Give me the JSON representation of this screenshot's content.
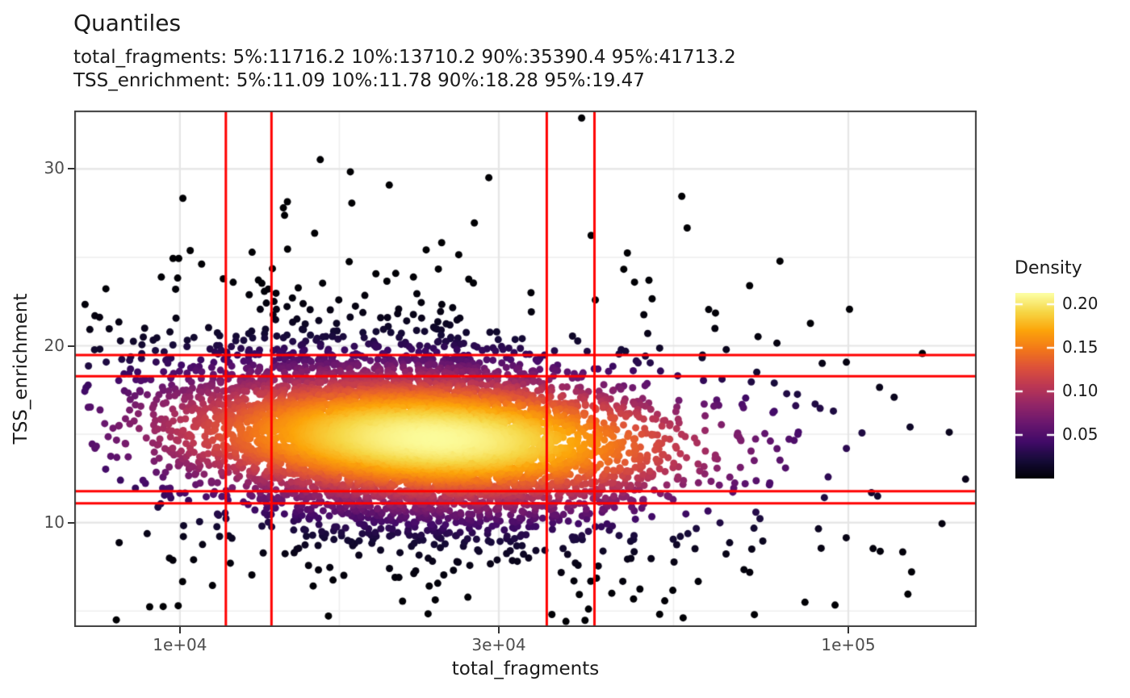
{
  "chart_data": {
    "type": "scatter",
    "subtype": "density-colored-scatter",
    "title": "Quantiles",
    "subtitle_lines": [
      "total_fragments: 5%:11716.2 10%:13710.2 90%:35390.4 95%:41713.2",
      "TSS_enrichment: 5%:11.09 10%:11.78 90%:18.28 95%:19.47"
    ],
    "xlabel": "total_fragments",
    "ylabel": "TSS_enrichment",
    "x_axis": {
      "scale": "log10",
      "range_log10": [
        3.842,
        5.192
      ],
      "ticks": [
        {
          "value": 10000,
          "label": "1e+04"
        },
        {
          "value": 30000,
          "label": "3e+04"
        },
        {
          "value": 100000,
          "label": "1e+05"
        }
      ],
      "minor_ticks": [
        17320,
        54770
      ]
    },
    "y_axis": {
      "scale": "linear",
      "range": [
        4.1,
        33.3
      ],
      "ticks": [
        {
          "value": 10,
          "label": "10"
        },
        {
          "value": 20,
          "label": "20"
        },
        {
          "value": 30,
          "label": "30"
        }
      ],
      "minor_ticks": [
        5,
        15,
        25
      ]
    },
    "quantiles": {
      "total_fragments": {
        "5%": 11716.2,
        "10%": 13710.2,
        "90%": 35390.4,
        "95%": 41713.2
      },
      "TSS_enrichment": {
        "5%": 11.09,
        "10%": 11.78,
        "90%": 18.28,
        "95%": 19.47
      }
    },
    "quantile_lines": {
      "color": "#FF0000",
      "width": 3,
      "x_values": [
        11716.2,
        13710.2,
        35390.4,
        41713.2
      ],
      "y_values": [
        11.09,
        11.78,
        18.28,
        19.47
      ]
    },
    "legend": {
      "title": "Density",
      "position": "right",
      "bar_range": [
        0.0,
        0.213
      ],
      "tick_values": [
        0.2,
        0.15,
        0.1,
        0.05
      ],
      "tick_labels": [
        "0.20",
        "0.15",
        "0.10",
        "0.05"
      ]
    },
    "colormap": {
      "name": "inferno",
      "stops": [
        "#000004",
        "#160b39",
        "#420a68",
        "#6a176e",
        "#932667",
        "#bc3754",
        "#dd513a",
        "#f37819",
        "#fca50a",
        "#f6d746",
        "#fcffa4"
      ]
    },
    "grid": {
      "background": "#ffffff",
      "major_color": "#e5e5e5",
      "minor_color": "#efefef",
      "border_color": "#3c3c3c"
    },
    "text_colors": {
      "axis_text": "#4d4d4d",
      "title_text": "#1a1a1a"
    },
    "point_cloud": {
      "n": 7000,
      "seed": 42,
      "point_radius": 4.5,
      "bounds": {
        "log10_x": [
          3.856,
          5.185
        ],
        "y": [
          4.35,
          33.2
        ]
      },
      "position_components": [
        {
          "weight": 0.8,
          "mean_log10_x": 4.345,
          "sd_log10_x": 0.155,
          "mean_y": 14.8,
          "sd_y": 2.3,
          "rho": -0.18
        },
        {
          "weight": 0.15,
          "mean_log10_x": 4.33,
          "sd_log10_x": 0.26,
          "mean_y": 15.0,
          "sd_y": 3.8,
          "rho": -0.25
        },
        {
          "weight": 0.05,
          "mean_log10_x": 4.4,
          "sd_log10_x": 0.4,
          "mean_y": 13.8,
          "sd_y": 7.0,
          "rho": -0.25
        }
      ],
      "color_density": {
        "mean_log10_x": 4.38,
        "sd_log10_x": 0.225,
        "mean_y": 14.75,
        "sd_y": 1.95,
        "rho": -0.15,
        "gamma": 0.5
      }
    }
  }
}
